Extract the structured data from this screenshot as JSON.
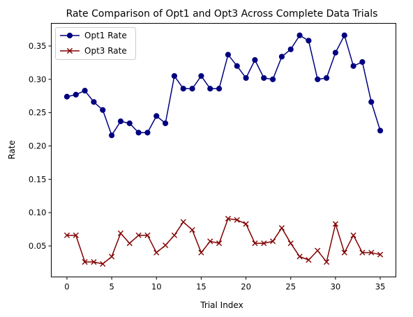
{
  "chart_data": {
    "type": "line",
    "title": "Rate Comparison of Opt1 and Opt3 Across Complete Data Trials",
    "xlabel": "Trial Index",
    "ylabel": "Rate",
    "xlim": [
      -1.75,
      36.75
    ],
    "ylim": [
      0.0035,
      0.384
    ],
    "x_ticks": [
      0,
      5,
      10,
      15,
      20,
      25,
      30,
      35
    ],
    "y_ticks": [
      0.05,
      0.1,
      0.15,
      0.2,
      0.25,
      0.3,
      0.35
    ],
    "y_tick_labels": [
      "0.05",
      "0.10",
      "0.15",
      "0.20",
      "0.25",
      "0.30",
      "0.35"
    ],
    "grid": false,
    "legend_position": "top-left",
    "x": [
      0,
      1,
      2,
      3,
      4,
      5,
      6,
      7,
      8,
      9,
      10,
      11,
      12,
      13,
      14,
      15,
      16,
      17,
      18,
      19,
      20,
      21,
      22,
      23,
      24,
      25,
      26,
      27,
      28,
      29,
      30,
      31,
      32,
      33,
      34,
      35
    ],
    "series": [
      {
        "name": "Opt1 Rate",
        "color": "#000080",
        "marker": "circle",
        "values": [
          0.274,
          0.277,
          0.283,
          0.266,
          0.254,
          0.216,
          0.237,
          0.234,
          0.22,
          0.22,
          0.245,
          0.234,
          0.305,
          0.286,
          0.286,
          0.305,
          0.286,
          0.286,
          0.337,
          0.32,
          0.302,
          0.329,
          0.302,
          0.3,
          0.334,
          0.345,
          0.366,
          0.358,
          0.3,
          0.302,
          0.34,
          0.366,
          0.32,
          0.326,
          0.266,
          0.223
        ]
      },
      {
        "name": "Opt3 Rate",
        "color": "#800000",
        "marker": "x",
        "values": [
          0.066,
          0.066,
          0.026,
          0.026,
          0.023,
          0.034,
          0.069,
          0.054,
          0.066,
          0.066,
          0.04,
          0.051,
          0.066,
          0.086,
          0.074,
          0.04,
          0.057,
          0.054,
          0.091,
          0.089,
          0.083,
          0.054,
          0.054,
          0.057,
          0.077,
          0.054,
          0.034,
          0.029,
          0.043,
          0.026,
          0.083,
          0.04,
          0.066,
          0.04,
          0.04,
          0.037
        ]
      }
    ]
  }
}
